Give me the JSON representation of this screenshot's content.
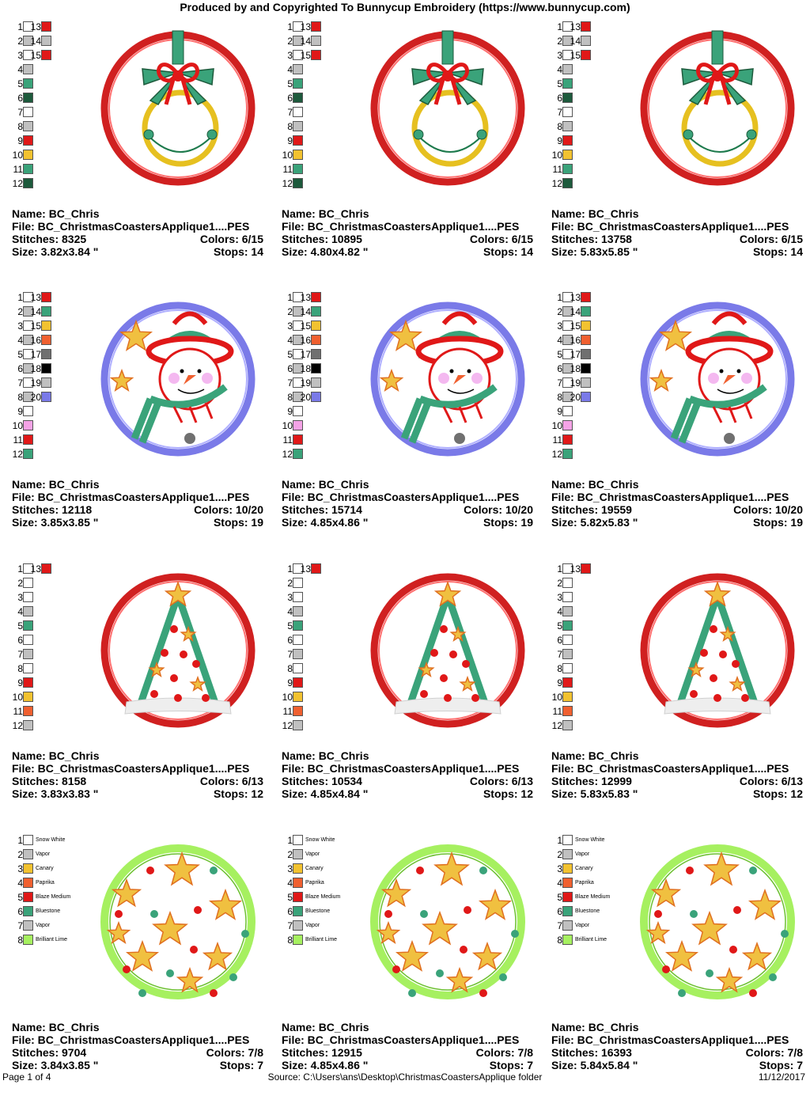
{
  "header": "Produced by and Copyrighted To Bunnycup Embroidery (https://www.bunnycup.com)",
  "footer": {
    "page": "Page 1 of 4",
    "source": "Source:  C:\\Users\\ans\\Desktop\\ChristmasCoastersApplique folder",
    "date": "11/12/2017"
  },
  "labels": {
    "name": "Name:",
    "file": "File:",
    "stitches": "Stitches:",
    "colors": "Colors:",
    "size": "Size:",
    "stops": "Stops:"
  },
  "palettes": {
    "ornament": [
      {
        "n": "1",
        "c": "#ffffff"
      },
      {
        "n": "2",
        "c": "#c0c0c0"
      },
      {
        "n": "3",
        "c": "#ffffff"
      },
      {
        "n": "4",
        "c": "#c0c0c0"
      },
      {
        "n": "5",
        "c": "#3aa37a"
      },
      {
        "n": "6",
        "c": "#1d5a3c"
      },
      {
        "n": "7",
        "c": "#ffffff"
      },
      {
        "n": "8",
        "c": "#c0c0c0"
      },
      {
        "n": "9",
        "c": "#e01818"
      },
      {
        "n": "10",
        "c": "#f2c230"
      },
      {
        "n": "11",
        "c": "#3aa37a"
      },
      {
        "n": "12",
        "c": "#1d5a3c"
      },
      {
        "n": "13",
        "c": "#e01818"
      },
      {
        "n": "14",
        "c": "#c0c0c0"
      },
      {
        "n": "15",
        "c": "#e01818"
      }
    ],
    "snowman": [
      {
        "n": "1",
        "c": "#ffffff"
      },
      {
        "n": "2",
        "c": "#c0c0c0"
      },
      {
        "n": "3",
        "c": "#ffffff"
      },
      {
        "n": "4",
        "c": "#c0c0c0"
      },
      {
        "n": "5",
        "c": "#ffffff"
      },
      {
        "n": "6",
        "c": "#c0c0c0"
      },
      {
        "n": "7",
        "c": "#ffffff"
      },
      {
        "n": "8",
        "c": "#c0c0c0"
      },
      {
        "n": "9",
        "c": "#ffffff"
      },
      {
        "n": "10",
        "c": "#f4a3e6"
      },
      {
        "n": "11",
        "c": "#e01818"
      },
      {
        "n": "12",
        "c": "#3aa37a"
      },
      {
        "n": "13",
        "c": "#e01818"
      },
      {
        "n": "14",
        "c": "#3aa37a"
      },
      {
        "n": "15",
        "c": "#f2c230"
      },
      {
        "n": "16",
        "c": "#f06030"
      },
      {
        "n": "17",
        "c": "#707070"
      },
      {
        "n": "18",
        "c": "#000000"
      },
      {
        "n": "19",
        "c": "#c0c0c0"
      },
      {
        "n": "20",
        "c": "#7a7ae8"
      }
    ],
    "tree": [
      {
        "n": "1",
        "c": "#ffffff"
      },
      {
        "n": "2",
        "c": "#ffffff"
      },
      {
        "n": "3",
        "c": "#ffffff"
      },
      {
        "n": "4",
        "c": "#c0c0c0"
      },
      {
        "n": "5",
        "c": "#3aa37a"
      },
      {
        "n": "6",
        "c": "#ffffff"
      },
      {
        "n": "7",
        "c": "#c0c0c0"
      },
      {
        "n": "8",
        "c": "#ffffff"
      },
      {
        "n": "9",
        "c": "#e01818"
      },
      {
        "n": "10",
        "c": "#f2c230"
      },
      {
        "n": "11",
        "c": "#f06030"
      },
      {
        "n": "12",
        "c": "#c0c0c0"
      },
      {
        "n": "13",
        "c": "#e01818"
      }
    ],
    "stars": [
      {
        "n": "1",
        "c": "#ffffff",
        "name": "Snow White"
      },
      {
        "n": "2",
        "c": "#c0c0c0",
        "name": "Vapor"
      },
      {
        "n": "3",
        "c": "#f2c230",
        "name": "Canary"
      },
      {
        "n": "4",
        "c": "#f06030",
        "name": "Paprika"
      },
      {
        "n": "5",
        "c": "#e01818",
        "name": "Blaze Medium"
      },
      {
        "n": "6",
        "c": "#3aa37a",
        "name": "Bluestone"
      },
      {
        "n": "7",
        "c": "#c0c0c0",
        "name": "Vapor"
      },
      {
        "n": "8",
        "c": "#a6f060",
        "name": "Brilliant Lime"
      }
    ]
  },
  "designs": [
    {
      "type": "ornament",
      "name": "BC_Chris",
      "file": "BC_ChristmasCoastersApplique1....PES",
      "stitches": "8325",
      "colors": "6/15",
      "size": "3.82x3.84 \"",
      "stops": "14"
    },
    {
      "type": "ornament",
      "name": "BC_Chris",
      "file": "BC_ChristmasCoastersApplique1....PES",
      "stitches": "10895",
      "colors": "6/15",
      "size": "4.80x4.82 \"",
      "stops": "14"
    },
    {
      "type": "ornament",
      "name": "BC_Chris",
      "file": "BC_ChristmasCoastersApplique1....PES",
      "stitches": "13758",
      "colors": "6/15",
      "size": "5.83x5.85 \"",
      "stops": "14"
    },
    {
      "type": "snowman",
      "name": "BC_Chris",
      "file": "BC_ChristmasCoastersApplique1....PES",
      "stitches": "12118",
      "colors": "10/20",
      "size": "3.85x3.85 \"",
      "stops": "19"
    },
    {
      "type": "snowman",
      "name": "BC_Chris",
      "file": "BC_ChristmasCoastersApplique1....PES",
      "stitches": "15714",
      "colors": "10/20",
      "size": "4.85x4.86 \"",
      "stops": "19"
    },
    {
      "type": "snowman",
      "name": "BC_Chris",
      "file": "BC_ChristmasCoastersApplique1....PES",
      "stitches": "19559",
      "colors": "10/20",
      "size": "5.82x5.83 \"",
      "stops": "19"
    },
    {
      "type": "tree",
      "name": "BC_Chris",
      "file": "BC_ChristmasCoastersApplique1....PES",
      "stitches": "8158",
      "colors": "6/13",
      "size": "3.83x3.83 \"",
      "stops": "12"
    },
    {
      "type": "tree",
      "name": "BC_Chris",
      "file": "BC_ChristmasCoastersApplique1....PES",
      "stitches": "10534",
      "colors": "6/13",
      "size": "4.85x4.84 \"",
      "stops": "12"
    },
    {
      "type": "tree",
      "name": "BC_Chris",
      "file": "BC_ChristmasCoastersApplique1....PES",
      "stitches": "12999",
      "colors": "6/13",
      "size": "5.83x5.83 \"",
      "stops": "12"
    },
    {
      "type": "stars",
      "name": "BC_Chris",
      "file": "BC_ChristmasCoastersApplique1....PES",
      "stitches": "9704",
      "colors": "7/8",
      "size": "3.84x3.85 \"",
      "stops": "7"
    },
    {
      "type": "stars",
      "name": "BC_Chris",
      "file": "BC_ChristmasCoastersApplique1....PES",
      "stitches": "12915",
      "colors": "7/8",
      "size": "4.85x4.86 \"",
      "stops": "7"
    },
    {
      "type": "stars",
      "name": "BC_Chris",
      "file": "BC_ChristmasCoastersApplique1....PES",
      "stitches": "16393",
      "colors": "7/8",
      "size": "5.84x5.84 \"",
      "stops": "7"
    }
  ]
}
